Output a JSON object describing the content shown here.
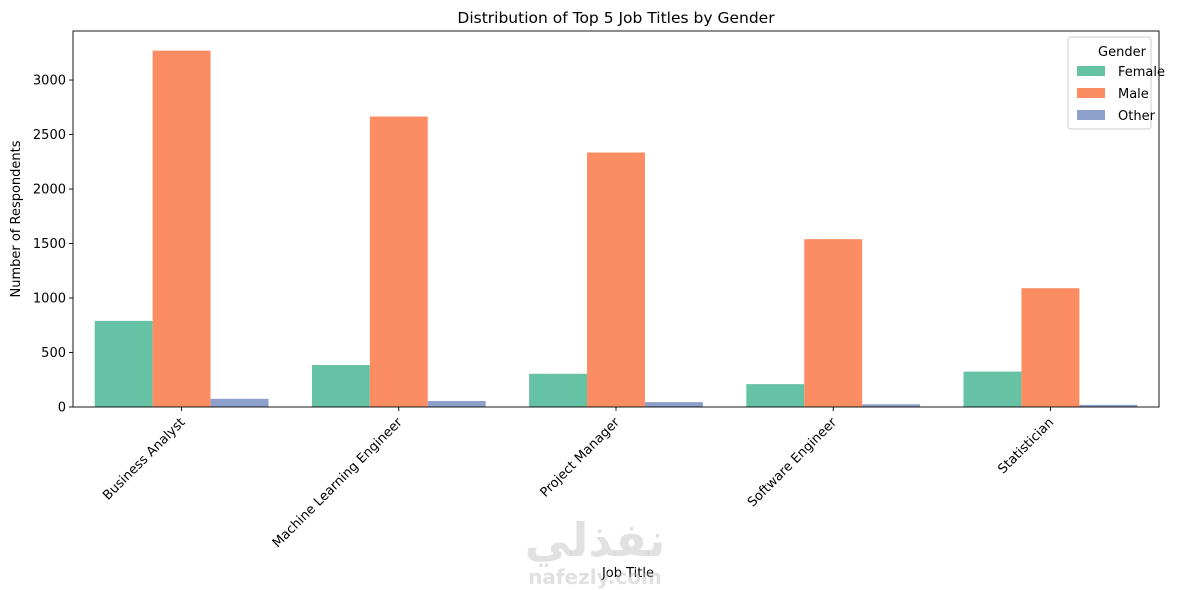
{
  "chart_data": {
    "type": "bar",
    "title": "Distribution of Top 5 Job Titles by Gender",
    "xlabel": "Job Title",
    "ylabel": "Number of Respondents",
    "categories": [
      "Business Analyst",
      "Machine Learning Engineer",
      "Project Manager",
      "Software Engineer",
      "Statistician"
    ],
    "series": [
      {
        "name": "Female",
        "color": "#66c2a5",
        "values": [
          790,
          385,
          305,
          210,
          325
        ]
      },
      {
        "name": "Male",
        "color": "#fc8d62",
        "values": [
          3270,
          2665,
          2335,
          1540,
          1090
        ]
      },
      {
        "name": "Other",
        "color": "#8da0cb",
        "values": [
          75,
          55,
          45,
          25,
          20
        ]
      }
    ],
    "ylim": [
      0,
      3450
    ],
    "yticks": [
      0,
      500,
      1000,
      1500,
      2000,
      2500,
      3000
    ],
    "legend": {
      "title": "Gender",
      "placement": "top-right"
    },
    "grid": false
  },
  "watermark": {
    "arabic": "نفذلي",
    "latin": "nafezly.com"
  }
}
